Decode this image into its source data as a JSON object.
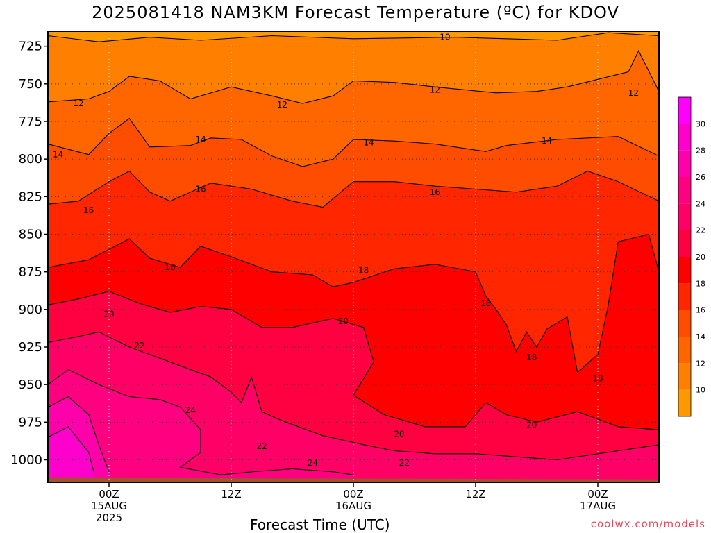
{
  "title": "2025081418 NAM3KM Forecast Temperature (ºC) for KDOV",
  "xlabel": "Forecast Time (UTC)",
  "credit": "coolwx.com/models",
  "chart_data": {
    "type": "heatmap",
    "y_axis": {
      "label": "",
      "scale": "pressure (hPa), decreasing upward",
      "range": [
        1015,
        715
      ],
      "ticks": [
        725,
        750,
        775,
        800,
        825,
        850,
        875,
        900,
        925,
        950,
        975,
        1000
      ]
    },
    "x_axis": {
      "ticks": [
        {
          "hour": 6,
          "lines": [
            "00Z",
            "15AUG",
            "2025"
          ]
        },
        {
          "hour": 18,
          "lines": [
            "12Z"
          ]
        },
        {
          "hour": 30,
          "lines": [
            "00Z",
            "16AUG"
          ]
        },
        {
          "hour": 42,
          "lines": [
            "12Z"
          ]
        },
        {
          "hour": 54,
          "lines": [
            "00Z",
            "17AUG"
          ]
        }
      ],
      "range_hours": [
        0,
        60
      ]
    },
    "grid": true,
    "colorbar": {
      "placement": "right",
      "levels": [
        10,
        12,
        14,
        16,
        18,
        20,
        22,
        24,
        26,
        28,
        30
      ],
      "colors": [
        "#ff9900",
        "#ff8000",
        "#ff6600",
        "#ff4d00",
        "#ff2600",
        "#ff0000",
        "#ff0040",
        "#ff0066",
        "#ff0080",
        "#ff00aa",
        "#ff00cc",
        "#ff00ff"
      ]
    },
    "contours": [
      {
        "value": 10,
        "label": "10",
        "points": [
          [
            0,
            718
          ],
          [
            5,
            722
          ],
          [
            10,
            719
          ],
          [
            15,
            721
          ],
          [
            22,
            718
          ],
          [
            30,
            720
          ],
          [
            40,
            719
          ],
          [
            50,
            721
          ],
          [
            55,
            716
          ],
          [
            60,
            718
          ]
        ]
      },
      {
        "value": 12,
        "label": "12",
        "points": [
          [
            0,
            762
          ],
          [
            4,
            760
          ],
          [
            6,
            755
          ],
          [
            8,
            745
          ],
          [
            11,
            748
          ],
          [
            14,
            760
          ],
          [
            18,
            752
          ],
          [
            22,
            758
          ],
          [
            25,
            763
          ],
          [
            28,
            758
          ],
          [
            30,
            748
          ],
          [
            34,
            749
          ],
          [
            38,
            752
          ],
          [
            44,
            756
          ],
          [
            48,
            755
          ],
          [
            51,
            752
          ],
          [
            54,
            747
          ],
          [
            57,
            742
          ],
          [
            58,
            728
          ],
          [
            60,
            755
          ]
        ]
      },
      {
        "value": 14,
        "label": "14",
        "points": [
          [
            0,
            790
          ],
          [
            4,
            797
          ],
          [
            6,
            783
          ],
          [
            8,
            773
          ],
          [
            10,
            792
          ],
          [
            14,
            791
          ],
          [
            16,
            786
          ],
          [
            19,
            787
          ],
          [
            22,
            798
          ],
          [
            25,
            805
          ],
          [
            28,
            800
          ],
          [
            30,
            787
          ],
          [
            34,
            788
          ],
          [
            38,
            790
          ],
          [
            43,
            795
          ],
          [
            45,
            791
          ],
          [
            50,
            787
          ],
          [
            56,
            785
          ],
          [
            60,
            798
          ]
        ]
      },
      {
        "value": 16,
        "label": "16",
        "points": [
          [
            0,
            830
          ],
          [
            3,
            828
          ],
          [
            6,
            815
          ],
          [
            8,
            808
          ],
          [
            10,
            822
          ],
          [
            12,
            828
          ],
          [
            16,
            816
          ],
          [
            20,
            820
          ],
          [
            24,
            828
          ],
          [
            27,
            832
          ],
          [
            30,
            815
          ],
          [
            34,
            815
          ],
          [
            38,
            818
          ],
          [
            42,
            820
          ],
          [
            46,
            822
          ],
          [
            50,
            818
          ],
          [
            53,
            808
          ],
          [
            56,
            815
          ],
          [
            60,
            828
          ]
        ]
      },
      {
        "value": 18,
        "label": "18",
        "points": [
          [
            0,
            872
          ],
          [
            4,
            867
          ],
          [
            6,
            860
          ],
          [
            8,
            853
          ],
          [
            10,
            866
          ],
          [
            13,
            872
          ],
          [
            15,
            858
          ],
          [
            18,
            865
          ],
          [
            22,
            875
          ],
          [
            26,
            877
          ],
          [
            28,
            885
          ],
          [
            30,
            882
          ],
          [
            34,
            873
          ],
          [
            38,
            870
          ],
          [
            42,
            875
          ],
          [
            43,
            891
          ],
          [
            44,
            900
          ],
          [
            45,
            910
          ],
          [
            46,
            928
          ],
          [
            47,
            915
          ],
          [
            48,
            925
          ],
          [
            49,
            913
          ],
          [
            51,
            905
          ],
          [
            52,
            942
          ],
          [
            54,
            930
          ],
          [
            55,
            898
          ],
          [
            56,
            855
          ],
          [
            59,
            850
          ],
          [
            60,
            875
          ]
        ]
      },
      {
        "value": 20,
        "label": "20",
        "points": [
          [
            0,
            897
          ],
          [
            3,
            893
          ],
          [
            6,
            888
          ],
          [
            9,
            896
          ],
          [
            12,
            902
          ],
          [
            15,
            898
          ],
          [
            18,
            900
          ],
          [
            21,
            912
          ],
          [
            24,
            912
          ],
          [
            28,
            906
          ],
          [
            31,
            912
          ],
          [
            32,
            935
          ],
          [
            30,
            957
          ],
          [
            33,
            970
          ],
          [
            37,
            978
          ],
          [
            41,
            978
          ],
          [
            43,
            962
          ],
          [
            45,
            970
          ],
          [
            48,
            975
          ],
          [
            52,
            968
          ],
          [
            56,
            978
          ],
          [
            60,
            980
          ]
        ]
      },
      {
        "value": 22,
        "label": "22",
        "points": [
          [
            0,
            922
          ],
          [
            3,
            918
          ],
          [
            5,
            915
          ],
          [
            8,
            925
          ],
          [
            12,
            935
          ],
          [
            16,
            945
          ],
          [
            18,
            955
          ],
          [
            19,
            962
          ],
          [
            20,
            945
          ],
          [
            21,
            968
          ],
          [
            23,
            974
          ],
          [
            27,
            984
          ],
          [
            31,
            990
          ],
          [
            34,
            994
          ],
          [
            38,
            996
          ],
          [
            42,
            996
          ],
          [
            46,
            998
          ],
          [
            50,
            1000
          ],
          [
            54,
            996
          ],
          [
            58,
            992
          ],
          [
            60,
            990
          ]
        ]
      },
      {
        "value": 24,
        "label": "24",
        "points": [
          [
            0,
            950
          ],
          [
            2,
            940
          ],
          [
            5,
            950
          ],
          [
            8,
            958
          ],
          [
            11,
            960
          ],
          [
            13,
            965
          ],
          [
            15,
            980
          ],
          [
            15,
            995
          ],
          [
            13,
            1005
          ],
          [
            17,
            1010
          ],
          [
            20,
            1008
          ],
          [
            24,
            1006
          ],
          [
            28,
            1008
          ],
          [
            30,
            1010
          ]
        ]
      },
      {
        "value": 26,
        "label": "26",
        "points": [
          [
            0,
            965
          ],
          [
            2,
            958
          ],
          [
            4,
            970
          ],
          [
            5,
            990
          ],
          [
            6,
            1008
          ]
        ]
      },
      {
        "value": 28,
        "label": "28",
        "points": [
          [
            0,
            985
          ],
          [
            2,
            978
          ],
          [
            4,
            995
          ],
          [
            4.5,
            1008
          ]
        ]
      }
    ],
    "contour_labels": [
      {
        "text": "10",
        "hour": 39,
        "p": 719
      },
      {
        "text": "12",
        "hour": 3,
        "p": 763
      },
      {
        "text": "12",
        "hour": 23,
        "p": 764
      },
      {
        "text": "12",
        "hour": 38,
        "p": 754
      },
      {
        "text": "12",
        "hour": 57.5,
        "p": 756
      },
      {
        "text": "14",
        "hour": 1,
        "p": 797
      },
      {
        "text": "14",
        "hour": 15,
        "p": 787
      },
      {
        "text": "14",
        "hour": 31.5,
        "p": 789
      },
      {
        "text": "14",
        "hour": 49,
        "p": 788
      },
      {
        "text": "16",
        "hour": 4,
        "p": 834
      },
      {
        "text": "16",
        "hour": 15,
        "p": 820
      },
      {
        "text": "16",
        "hour": 38,
        "p": 822
      },
      {
        "text": "18",
        "hour": 12,
        "p": 872
      },
      {
        "text": "18",
        "hour": 31,
        "p": 874
      },
      {
        "text": "18",
        "hour": 43,
        "p": 896
      },
      {
        "text": "18",
        "hour": 47.5,
        "p": 932
      },
      {
        "text": "18",
        "hour": 54,
        "p": 946
      },
      {
        "text": "20",
        "hour": 6,
        "p": 903
      },
      {
        "text": "20",
        "hour": 29,
        "p": 908
      },
      {
        "text": "20",
        "hour": 34.5,
        "p": 983
      },
      {
        "text": "20",
        "hour": 47.5,
        "p": 977
      },
      {
        "text": "22",
        "hour": 9,
        "p": 924
      },
      {
        "text": "22",
        "hour": 21,
        "p": 991
      },
      {
        "text": "22",
        "hour": 35,
        "p": 1002
      },
      {
        "text": "24",
        "hour": 14,
        "p": 967
      },
      {
        "text": "24",
        "hour": 26,
        "p": 1002
      }
    ],
    "terrain": {
      "color": "#a0522d",
      "surface_p": [
        1012,
        1013
      ]
    }
  }
}
